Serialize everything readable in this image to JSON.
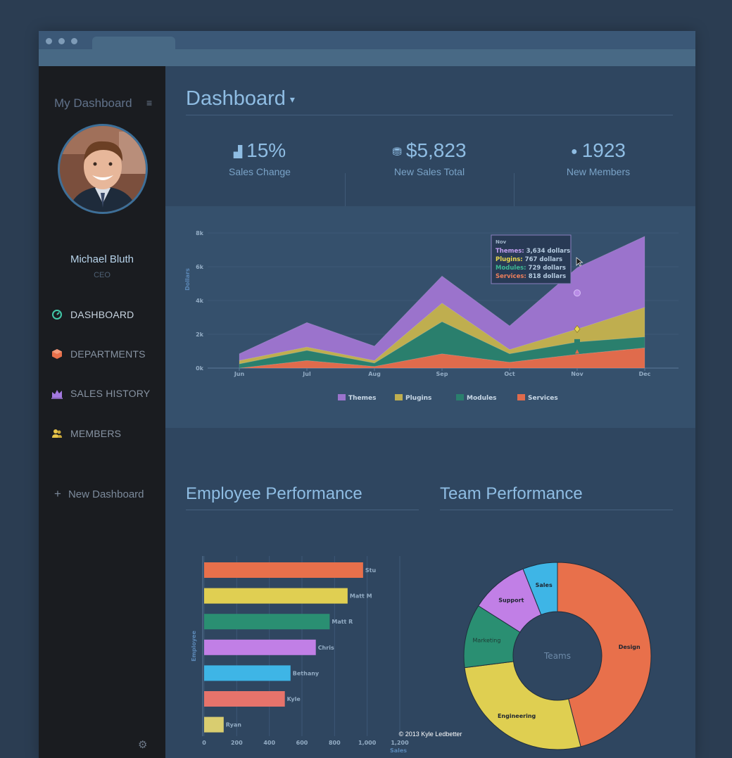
{
  "sidebar": {
    "title": "My Dashboard",
    "menu_icon": "menu-icon",
    "user": {
      "name": "Michael Bluth",
      "role": "CEO"
    },
    "nav": [
      {
        "label": "DASHBOARD",
        "icon": "dashboard-icon",
        "color": "#42c9a9",
        "active": true
      },
      {
        "label": "DEPARTMENTS",
        "icon": "departments-icon",
        "color": "#e8704b"
      },
      {
        "label": "SALES HISTORY",
        "icon": "sales-history-icon",
        "color": "#a479e0"
      },
      {
        "label": "MEMBERS",
        "icon": "members-icon",
        "color": "#e8c54a"
      }
    ],
    "new_dashboard": "New Dashboard",
    "settings_icon": "settings-icon"
  },
  "header": {
    "title": "Dashboard"
  },
  "stats": [
    {
      "value": "15%",
      "label": "Sales Change",
      "icon": "bar-chart-icon"
    },
    {
      "value": "$5,823",
      "label": "New Sales Total",
      "icon": "money-icon"
    },
    {
      "value": "1923",
      "label": "New Members",
      "icon": "users-icon"
    }
  ],
  "sections": {
    "employee_performance": "Employee Performance",
    "team_performance": "Team Performance"
  },
  "footer": "© 2013 Kyle Ledbetter",
  "chart_data": [
    {
      "type": "area",
      "stacked": true,
      "x": [
        "Jun",
        "Jul",
        "Aug",
        "Sep",
        "Oct",
        "Nov",
        "Dec"
      ],
      "ylabel": "Dollars",
      "ylim": [
        0,
        8000
      ],
      "yticks": [
        "0k",
        "2k",
        "4k",
        "6k",
        "8k"
      ],
      "legend_position": "bottom",
      "series": [
        {
          "name": "Services",
          "color": "#e06b4c",
          "values": [
            0,
            450,
            100,
            850,
            350,
            818,
            1200
          ]
        },
        {
          "name": "Modules",
          "color": "#2a7f6d",
          "values": [
            250,
            600,
            200,
            1900,
            500,
            729,
            650
          ]
        },
        {
          "name": "Plugins",
          "color": "#bfae4f",
          "values": [
            200,
            200,
            150,
            1100,
            250,
            767,
            1750
          ]
        },
        {
          "name": "Themes",
          "color": "#9b73cc",
          "values": [
            400,
            1450,
            850,
            1600,
            1400,
            3634,
            4200
          ]
        }
      ],
      "tooltip": {
        "title": "Nov",
        "lines": [
          {
            "name": "Themes",
            "text": "3,634 dollars",
            "color": "#c29ef0"
          },
          {
            "name": "Plugins",
            "text": "767 dollars",
            "color": "#e8d64e"
          },
          {
            "name": "Modules",
            "text": "729 dollars",
            "color": "#3eb893"
          },
          {
            "name": "Services",
            "text": "818 dollars",
            "color": "#ef7f5c"
          }
        ]
      }
    },
    {
      "type": "bar",
      "orientation": "horizontal",
      "ylabel": "Employee",
      "xlabel": "Sales",
      "xlim": [
        0,
        1200
      ],
      "xticks": [
        "0",
        "200",
        "400",
        "600",
        "800",
        "1,000",
        "1,200"
      ],
      "categories": [
        "Stu",
        "Matt M",
        "Matt R",
        "Chris",
        "Bethany",
        "Kyle",
        "Ryan"
      ],
      "values": [
        975,
        880,
        770,
        685,
        530,
        495,
        120
      ],
      "colors": [
        "#e8704b",
        "#e0cf52",
        "#2a8f72",
        "#c17fe6",
        "#3eb5e6",
        "#e6736b",
        "#d9cd70"
      ]
    },
    {
      "type": "pie",
      "donut": true,
      "center_label": "Teams",
      "categories": [
        "Design",
        "Engineering",
        "Marketing",
        "Support",
        "Sales"
      ],
      "values": [
        46,
        27,
        11,
        10,
        6
      ],
      "colors": [
        "#e8704b",
        "#dfcf51",
        "#2a8f72",
        "#c17fe6",
        "#3eb5e6"
      ]
    }
  ]
}
